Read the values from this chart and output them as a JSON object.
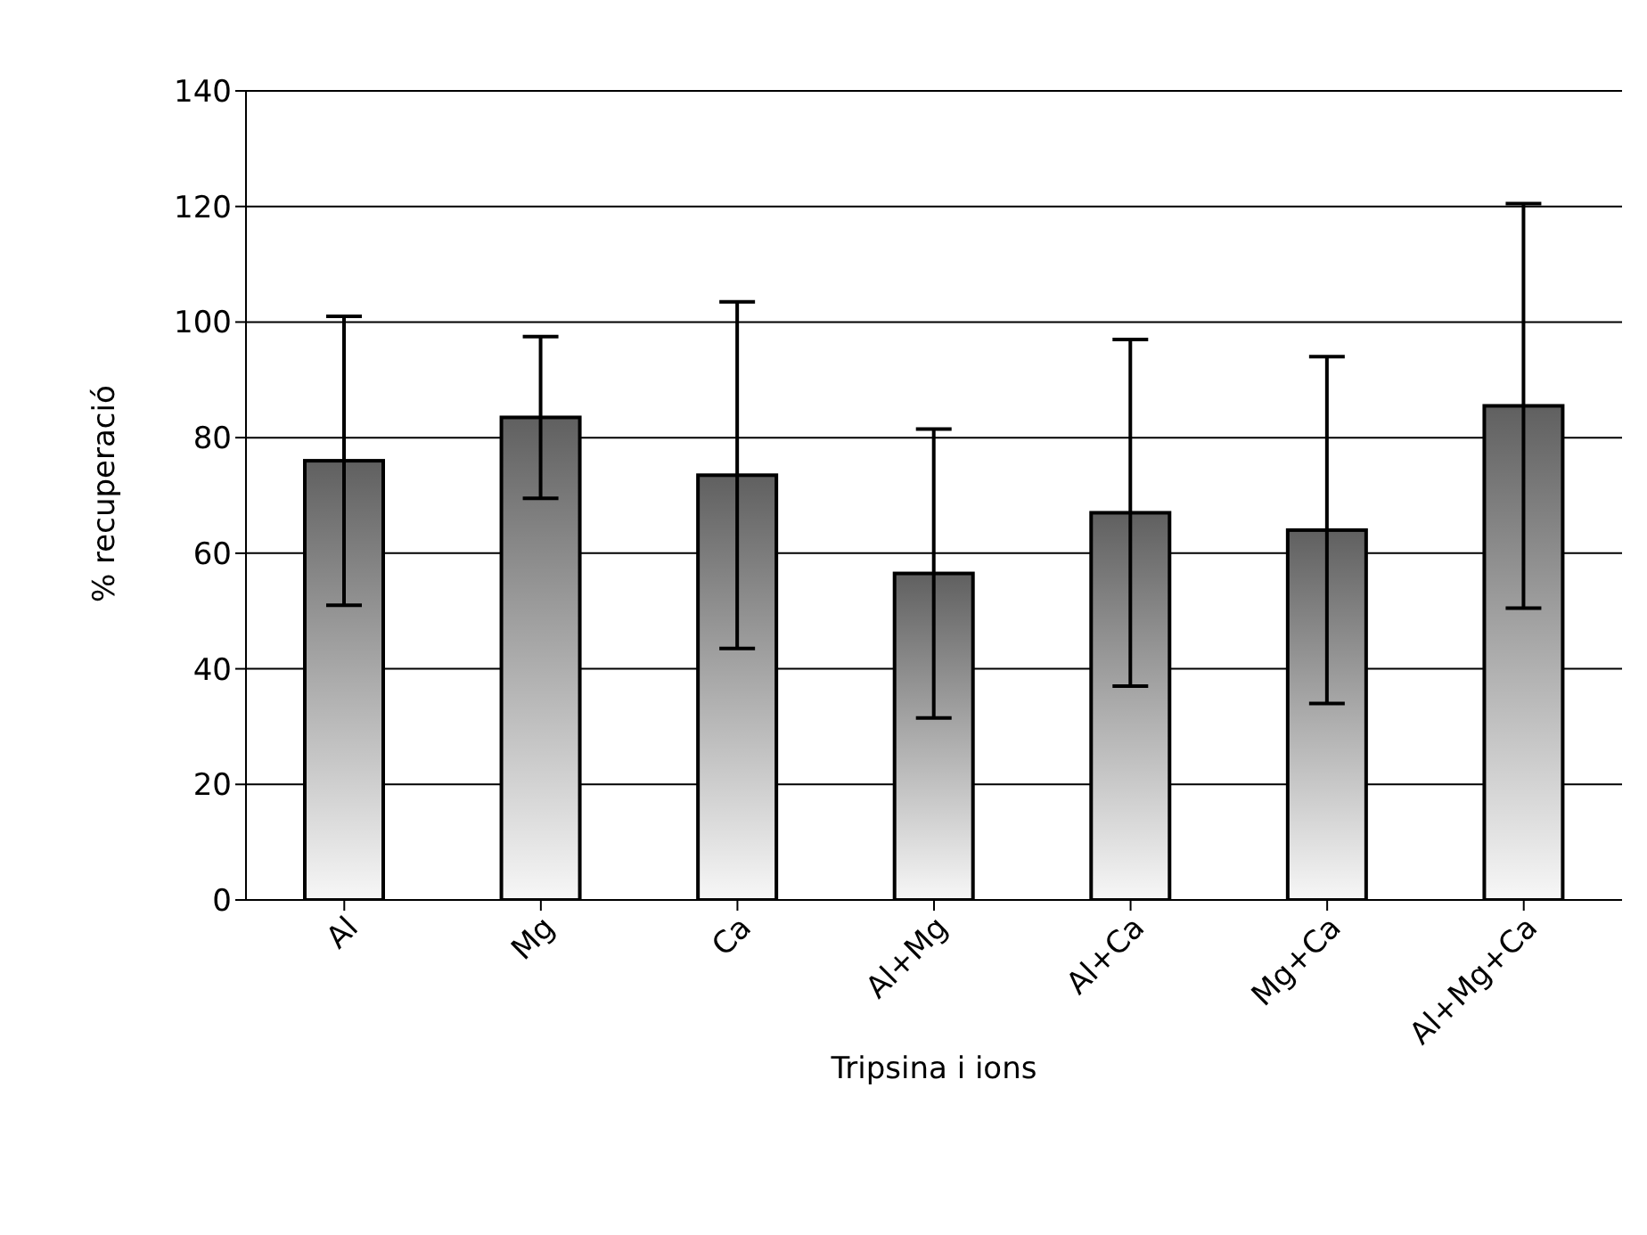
{
  "chart_data": {
    "type": "bar",
    "xlabel": "Tripsina i ions",
    "ylabel": "% recuperació",
    "categories": [
      "Al",
      "Mg",
      "Ca",
      "Al+Mg",
      "Al+Ca",
      "Mg+Ca",
      "Al+Mg+Ca"
    ],
    "values": [
      76,
      83.5,
      73.5,
      56.5,
      67,
      64,
      85.5
    ],
    "errors": [
      25,
      14,
      30,
      25,
      30,
      30,
      35
    ],
    "color": "#606060",
    "ylim": [
      0,
      140
    ],
    "yticks": [
      0,
      20,
      40,
      60,
      80,
      100,
      120,
      140
    ],
    "grid": "y"
  }
}
